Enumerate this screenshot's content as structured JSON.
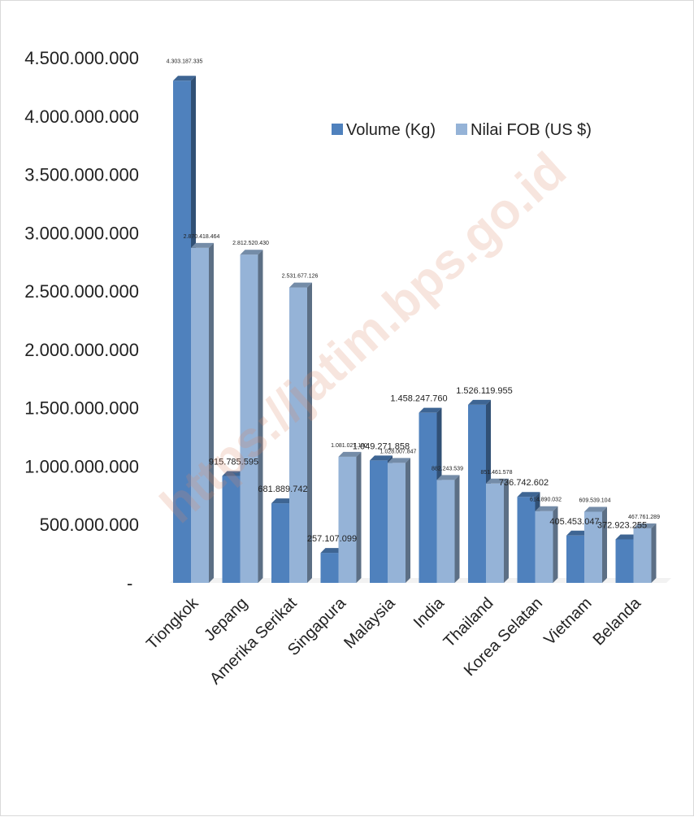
{
  "chart_data": {
    "type": "bar",
    "categories": [
      "Tiongkok",
      "Jepang",
      "Amerika Serikat",
      "Singapura",
      "Malaysia",
      "India",
      "Thailand",
      "Korea Selatan",
      "Vietnam",
      "Belanda"
    ],
    "series": [
      {
        "name": "Volume (Kg)",
        "color": "#4f81bd",
        "values": [
          4303187335,
          915785595,
          681889742,
          257107099,
          1049271858,
          1458247760,
          1526119955,
          736742602,
          405453047,
          372923255
        ],
        "labels": [
          "4.303.187.335",
          "915.785.595",
          "681.889.742",
          "257.107.099",
          "1.049.271.858",
          "1.458.247.760",
          "1.526.119.955",
          "736.742.602",
          "405.453.047",
          "372.923.255"
        ]
      },
      {
        "name": "Nilai FOB (US $)",
        "color": "#95b3d7",
        "values": [
          2870418464,
          2812520430,
          2531677126,
          1081027180,
          1028007847,
          882243539,
          851461578,
          614890032,
          609539104,
          467761289
        ],
        "labels": [
          "2.870.418.464",
          "2.812.520.430",
          "2.531.677.126",
          "1.081.027.180",
          "1.028.007.847",
          "882.243.539",
          "851.461.578",
          "614.890.032",
          "609.539.104",
          "467.761.289"
        ]
      }
    ],
    "y_ticks": [
      {
        "value": 0,
        "label": "-"
      },
      {
        "value": 500000000,
        "label": "500.000.000"
      },
      {
        "value": 1000000000,
        "label": "1.000.000.000"
      },
      {
        "value": 1500000000,
        "label": "1.500.000.000"
      },
      {
        "value": 2000000000,
        "label": "2.000.000.000"
      },
      {
        "value": 2500000000,
        "label": "2.500.000.000"
      },
      {
        "value": 3000000000,
        "label": "3.000.000.000"
      },
      {
        "value": 3500000000,
        "label": "3.500.000.000"
      },
      {
        "value": 4000000000,
        "label": "4.000.000.000"
      },
      {
        "value": 4500000000,
        "label": "4.500.000.000"
      }
    ],
    "ylim": [
      0,
      4500000000
    ],
    "grid": false,
    "bar_style": "3d",
    "legend_position": "top-right",
    "watermark": "https://jatim.bps.go.id"
  }
}
